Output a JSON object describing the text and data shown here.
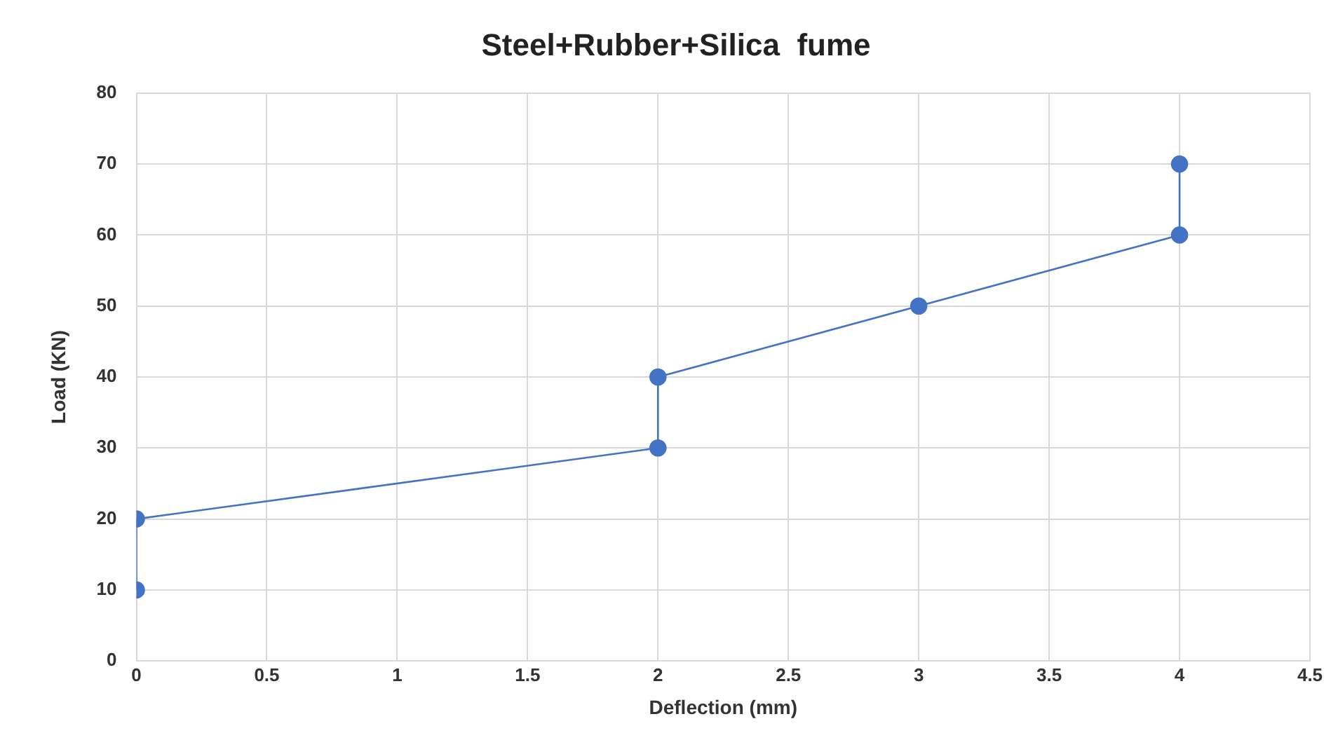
{
  "chart_data": {
    "type": "line",
    "title": "Steel+Rubber+Silica  fume",
    "xlabel": "Deflection (mm)",
    "ylabel": "Load (KN)",
    "x": [
      0,
      0,
      2,
      2,
      3,
      4,
      4
    ],
    "series": [
      {
        "color": "#4472c4",
        "values": [
          10,
          20,
          30,
          40,
          50,
          60,
          70
        ]
      }
    ],
    "xlim": [
      0,
      4.5
    ],
    "xticks": [
      0,
      0.5,
      1,
      1.5,
      2,
      2.5,
      3,
      3.5,
      4,
      4.5
    ],
    "ylim": [
      0,
      80
    ],
    "yticks": [
      0,
      10,
      20,
      30,
      40,
      50,
      60,
      70,
      80
    ],
    "grid": true,
    "legend": false,
    "marker": "circle",
    "line_style": "solid"
  }
}
